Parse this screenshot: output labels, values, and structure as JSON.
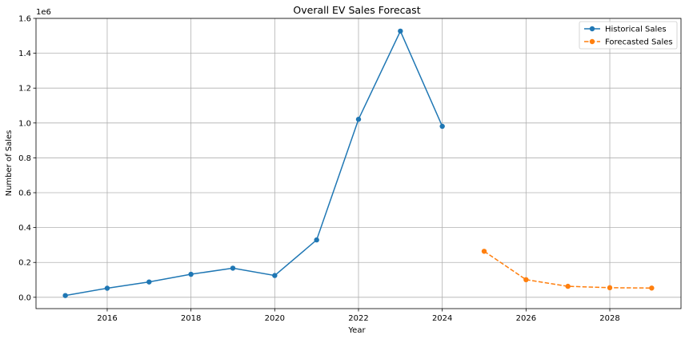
{
  "chart_data": {
    "type": "line",
    "title": "Overall EV Sales Forecast",
    "xlabel": "Year",
    "ylabel": "Number of Sales",
    "y_scale_label": "1e6",
    "xlim": [
      2014.3,
      2029.7
    ],
    "ylim": [
      -0.065,
      1.6
    ],
    "x_ticks": [
      2016,
      2018,
      2020,
      2022,
      2024,
      2026,
      2028
    ],
    "y_ticks": [
      0.0,
      0.2,
      0.4,
      0.6,
      0.8,
      1.0,
      1.2,
      1.4,
      1.6
    ],
    "y_tick_labels": [
      "0.0",
      "0.2",
      "0.4",
      "0.6",
      "0.8",
      "1.0",
      "1.2",
      "1.4",
      "1.6"
    ],
    "grid": true,
    "legend_position": "top-right",
    "series": [
      {
        "name": "Historical Sales",
        "color": "#1f77b4",
        "linestyle": "solid",
        "marker": "circle",
        "x": [
          2015,
          2016,
          2017,
          2018,
          2019,
          2020,
          2021,
          2022,
          2023,
          2024
        ],
        "y": [
          0.01,
          0.052,
          0.088,
          0.132,
          0.167,
          0.125,
          0.329,
          1.021,
          1.527,
          0.981
        ]
      },
      {
        "name": "Forecasted Sales",
        "color": "#ff7f0e",
        "linestyle": "dashed",
        "marker": "circle",
        "x": [
          2025,
          2026,
          2027,
          2028,
          2029
        ],
        "y": [
          0.264,
          0.101,
          0.063,
          0.055,
          0.053
        ]
      }
    ]
  }
}
